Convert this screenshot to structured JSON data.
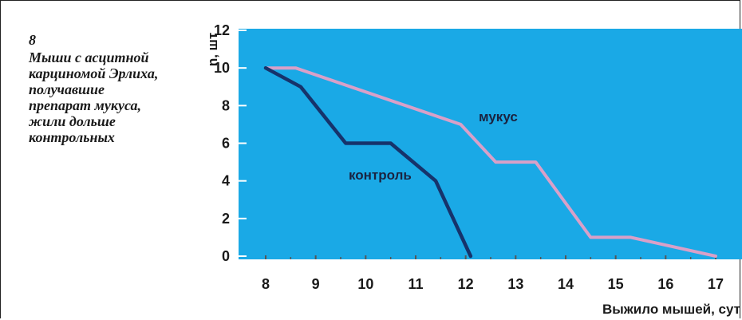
{
  "caption": {
    "number": "8",
    "lines": [
      "Мыши с асцитной",
      "карциномой Эрлиха,",
      "получавшие",
      "препарат мукуса,",
      "жили дольше",
      "контрольных"
    ]
  },
  "colors": {
    "plot_background": "#1aa9e6",
    "mucus_line": "#d9a0c8",
    "control_line": "#16336b"
  },
  "chart_data": {
    "type": "line",
    "xlabel": "Выжило мышей, сут",
    "ylabel": "n, шт",
    "x": [
      8,
      9,
      10,
      11,
      12,
      13,
      14,
      15,
      16,
      17
    ],
    "xlim": [
      7.3,
      17.5
    ],
    "ylim": [
      0,
      12
    ],
    "y_ticks": [
      0,
      2,
      4,
      6,
      8,
      10,
      12
    ],
    "grid": false,
    "series": [
      {
        "name": "мукус",
        "points": [
          [
            8,
            10
          ],
          [
            8.6,
            10
          ],
          [
            11.9,
            7
          ],
          [
            12.6,
            5
          ],
          [
            13.4,
            5
          ],
          [
            14.5,
            1
          ],
          [
            15.3,
            1
          ],
          [
            17,
            0
          ]
        ]
      },
      {
        "name": "контроль",
        "points": [
          [
            8,
            10
          ],
          [
            8.7,
            9
          ],
          [
            9.6,
            6
          ],
          [
            10.5,
            6
          ],
          [
            11.4,
            4
          ],
          [
            12.1,
            0
          ]
        ]
      }
    ]
  }
}
